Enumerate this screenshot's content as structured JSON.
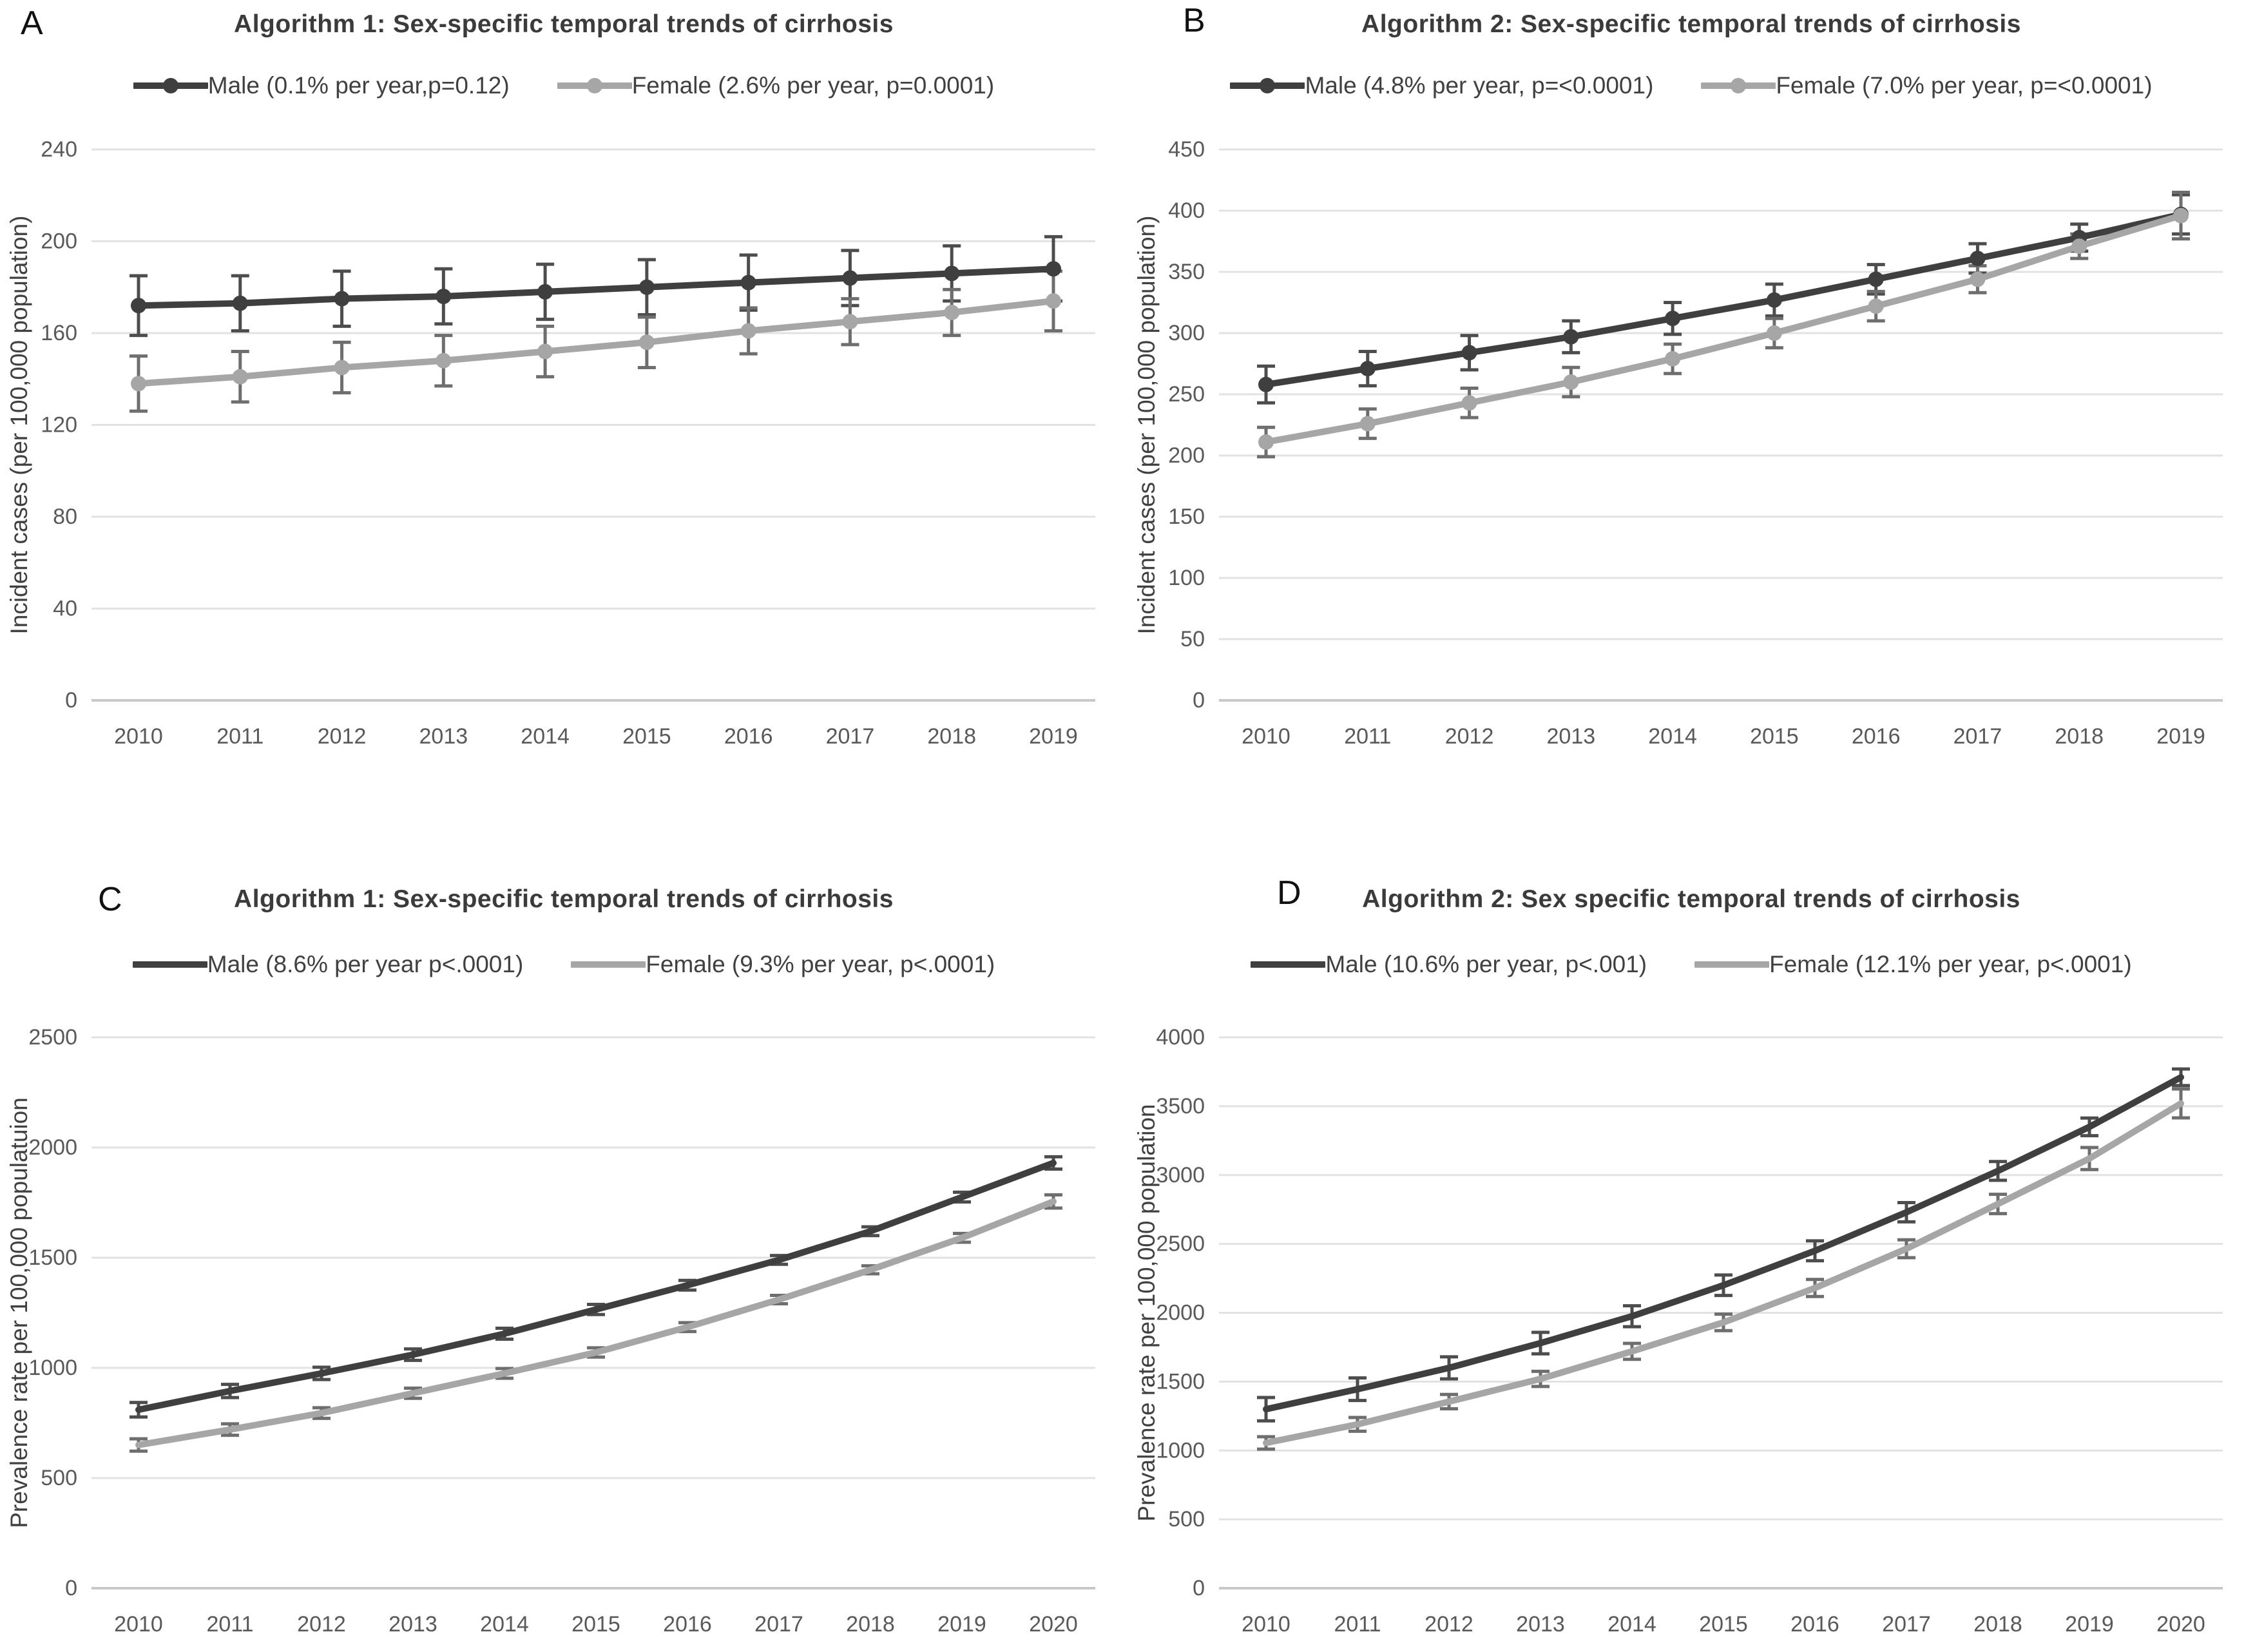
{
  "figure": {
    "background": "#ffffff",
    "gridline": "#e2e2e2",
    "zero_line": "#c8c8c8",
    "tick_label": "#595959",
    "axis_label": "#404040",
    "title_color": "#3b3b3b",
    "male_color": "#3f3f3f",
    "female_color": "#a6a6a6"
  },
  "chart_data": [
    {
      "panel": "A",
      "type": "line",
      "title": "Algorithm 1: Sex-specific temporal trends of cirrhosis",
      "xlabel": "",
      "ylabel": "Incident cases (per 100,000 population)",
      "x": [
        2010,
        2011,
        2012,
        2013,
        2014,
        2015,
        2016,
        2017,
        2018,
        2019
      ],
      "ylim": [
        0,
        240
      ],
      "yticks": [
        0,
        40,
        80,
        120,
        160,
        200,
        240
      ],
      "grid": true,
      "legend_position": "top",
      "markers": true,
      "series": [
        {
          "name": "Male",
          "legend_label": "Male (0.1% per year,p=0.12)",
          "color": "#3f3f3f",
          "err_color": "#4d4d4d",
          "values": [
            172,
            173,
            175,
            176,
            178,
            180,
            182,
            184,
            186,
            188
          ],
          "err": [
            13,
            12,
            12,
            12,
            12,
            12,
            12,
            12,
            12,
            14
          ]
        },
        {
          "name": "Female",
          "legend_label": "Female (2.6% per year, p=0.0001)",
          "color": "#a6a6a6",
          "err_color": "#6e6e6e",
          "values": [
            138,
            141,
            145,
            148,
            152,
            156,
            161,
            165,
            169,
            174
          ],
          "err": [
            12,
            11,
            11,
            11,
            11,
            11,
            10,
            10,
            10,
            13
          ]
        }
      ]
    },
    {
      "panel": "B",
      "type": "line",
      "title": "Algorithm 2: Sex-specific temporal trends of cirrhosis",
      "xlabel": "",
      "ylabel": "Incident cases  (per 100,000 population)",
      "x": [
        2010,
        2011,
        2012,
        2013,
        2014,
        2015,
        2016,
        2017,
        2018,
        2019
      ],
      "ylim": [
        0,
        450
      ],
      "yticks": [
        0,
        50,
        100,
        150,
        200,
        250,
        300,
        350,
        400,
        450
      ],
      "grid": true,
      "legend_position": "top",
      "markers": true,
      "series": [
        {
          "name": "Male",
          "legend_label": "Male (4.8% per year, p=<0.0001)",
          "color": "#3f3f3f",
          "err_color": "#4d4d4d",
          "values": [
            258,
            271,
            284,
            297,
            312,
            327,
            344,
            361,
            378,
            397
          ],
          "err": [
            15,
            14,
            14,
            13,
            13,
            13,
            12,
            12,
            11,
            16
          ]
        },
        {
          "name": "Female",
          "legend_label": "Female (7.0% per year, p=<0.0001)",
          "color": "#a6a6a6",
          "err_color": "#6e6e6e",
          "values": [
            211,
            226,
            243,
            260,
            279,
            300,
            322,
            344,
            371,
            396
          ],
          "err": [
            12,
            12,
            12,
            12,
            12,
            12,
            12,
            11,
            10,
            19
          ]
        }
      ]
    },
    {
      "panel": "C",
      "type": "line",
      "title": "Algorithm 1: Sex-specific temporal trends of cirrhosis",
      "xlabel": "",
      "ylabel": "Prevalence rate per 100,000 populatuion",
      "x": [
        2010,
        2011,
        2012,
        2013,
        2014,
        2015,
        2016,
        2017,
        2018,
        2019,
        2020
      ],
      "ylim": [
        0,
        2500
      ],
      "yticks": [
        0,
        500,
        1000,
        1500,
        2000,
        2500
      ],
      "grid": true,
      "legend_position": "top",
      "markers": false,
      "series": [
        {
          "name": "Male",
          "legend_label": "Male (8.6% per year p<.0001)",
          "color": "#3f3f3f",
          "err_color": "#4d4d4d",
          "values": [
            810,
            895,
            975,
            1060,
            1155,
            1265,
            1375,
            1490,
            1620,
            1775,
            1930
          ],
          "err": [
            33,
            30,
            28,
            26,
            25,
            23,
            22,
            20,
            20,
            22,
            28
          ]
        },
        {
          "name": "Female",
          "legend_label": "Female (9.3% per year, p<.0001)",
          "color": "#a6a6a6",
          "err_color": "#6e6e6e",
          "values": [
            650,
            720,
            795,
            885,
            975,
            1070,
            1185,
            1310,
            1445,
            1590,
            1755
          ],
          "err": [
            28,
            26,
            24,
            23,
            22,
            21,
            20,
            19,
            18,
            20,
            30
          ]
        }
      ]
    },
    {
      "panel": "D",
      "type": "line",
      "title": "Algorithm 2: Sex specific temporal trends of cirrhosis",
      "xlabel": "",
      "ylabel": "Prevalence rate per 100,000 population",
      "x": [
        2010,
        2011,
        2012,
        2013,
        2014,
        2015,
        2016,
        2017,
        2018,
        2019,
        2020
      ],
      "ylim": [
        0,
        4000
      ],
      "yticks": [
        0,
        500,
        1000,
        1500,
        2000,
        2500,
        3000,
        3500,
        4000
      ],
      "grid": true,
      "legend_position": "top",
      "markers": false,
      "series": [
        {
          "name": "Male",
          "legend_label": "Male (10.6% per year, p<.001)",
          "color": "#3f3f3f",
          "err_color": "#4d4d4d",
          "values": [
            1300,
            1445,
            1600,
            1780,
            1975,
            2200,
            2450,
            2730,
            3030,
            3350,
            3710
          ],
          "err": [
            85,
            82,
            80,
            78,
            76,
            74,
            72,
            70,
            68,
            64,
            60
          ]
        },
        {
          "name": "Female",
          "legend_label": "Female (12.1% per year, p<.0001)",
          "color": "#a6a6a6",
          "err_color": "#6e6e6e",
          "values": [
            1055,
            1190,
            1355,
            1520,
            1720,
            1930,
            2180,
            2465,
            2790,
            3120,
            3520
          ],
          "err": [
            45,
            50,
            52,
            55,
            58,
            60,
            62,
            65,
            70,
            80,
            105
          ]
        }
      ]
    }
  ]
}
